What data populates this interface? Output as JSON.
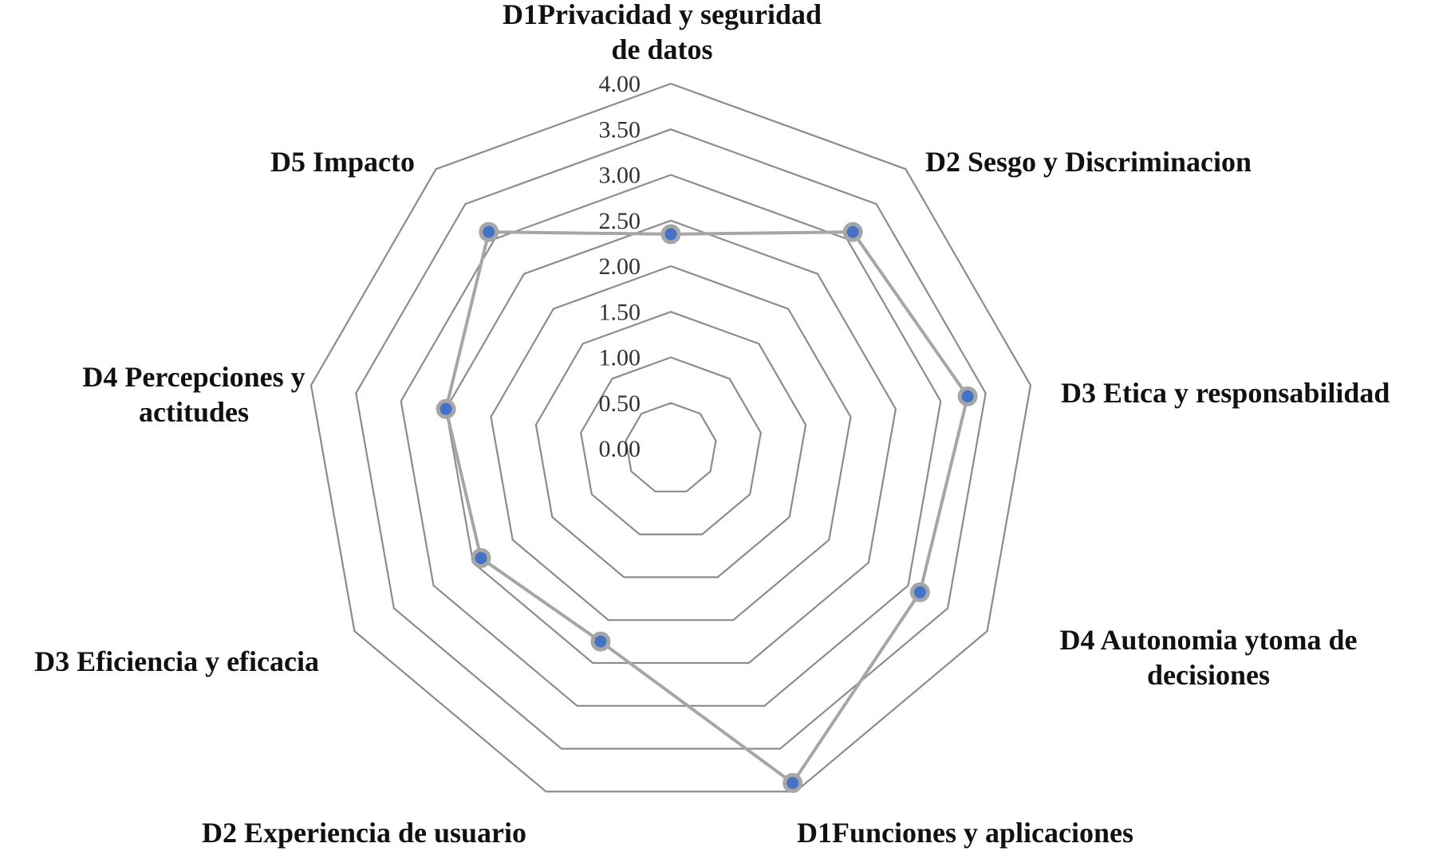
{
  "chart_data": {
    "type": "radar",
    "categories": [
      "D1Privacidad y seguridad de datos",
      "D2 Sesgo y  Discriminacion",
      "D3 Etica y responsabilidad",
      "D4 Autonomia  ytoma de decisiones",
      "D1Funciones y aplicaciones",
      "D2 Experiencia de usuario",
      "D3 Eficiencia y eficacia",
      "D4 Percepciones y actitudes",
      "D5 Impacto"
    ],
    "category_lines": [
      [
        "D1Privacidad y seguridad",
        "de datos"
      ],
      [
        "D2 Sesgo y  Discriminacion"
      ],
      [
        "D3 Etica y responsabilidad"
      ],
      [
        "D4 Autonomia  ytoma de",
        "decisiones"
      ],
      [
        "D1Funciones y aplicaciones"
      ],
      [
        "D2 Experiencia de usuario"
      ],
      [
        "D3 Eficiencia y eficacia"
      ],
      [
        "D4 Percepciones y",
        "actitudes"
      ],
      [
        "D5 Impacto"
      ]
    ],
    "series": [
      {
        "values": [
          2.35,
          3.1,
          3.3,
          3.15,
          3.9,
          2.25,
          2.4,
          2.5,
          3.1
        ]
      }
    ],
    "rlim": [
      0,
      4
    ],
    "ticks": [
      "0.00",
      "0.50",
      "1.00",
      "1.50",
      "2.00",
      "2.50",
      "3.00",
      "3.50",
      "4.00"
    ],
    "tick_values": [
      0,
      0.5,
      1,
      1.5,
      2,
      2.5,
      3,
      3.5,
      4
    ],
    "grid": true,
    "legend": "none",
    "colors": {
      "grid": "#8c8c8c",
      "line": "#a6a6a6",
      "marker_fill": "#4472c4",
      "marker_ring": "#a6a6a6"
    }
  }
}
